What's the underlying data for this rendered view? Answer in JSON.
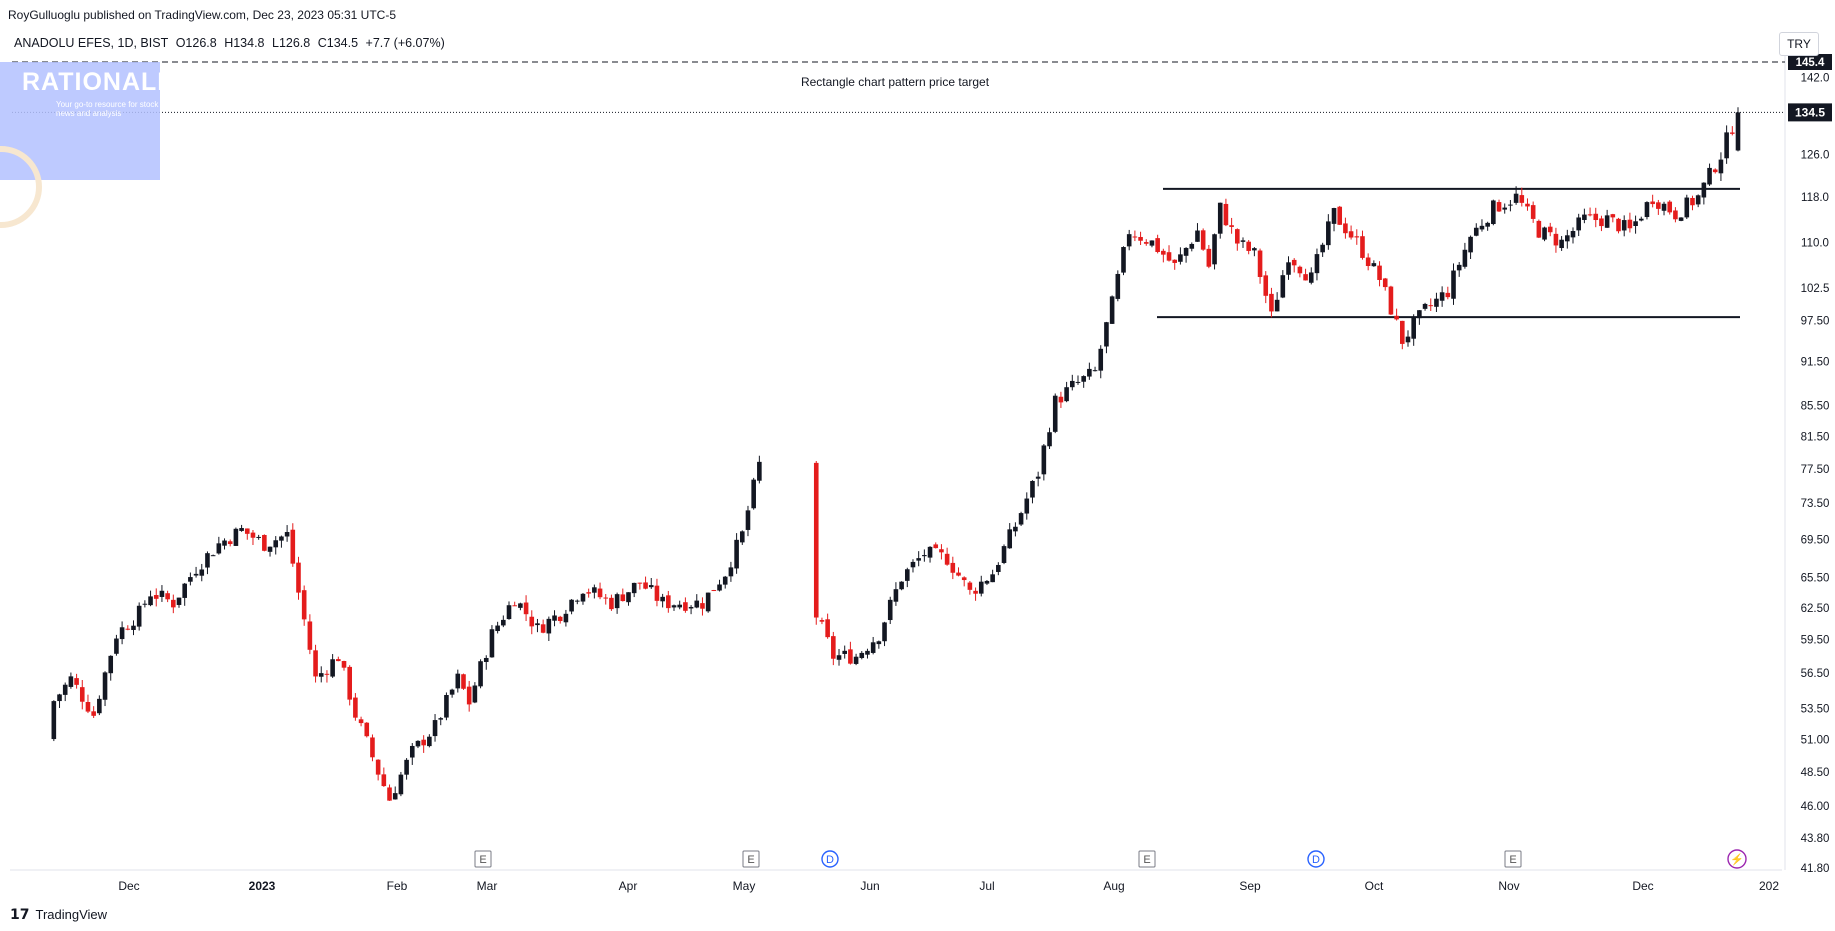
{
  "header": {
    "published": "RoyGulluoglu published on TradingView.com, Dec 23, 2023 05:31 UTC-5",
    "symbol": "ANADOLU EFES, 1D, BIST",
    "open": "O126.8",
    "high": "H134.8",
    "low": "L126.8",
    "close": "C134.5",
    "change": "+7.7 (+6.07%)",
    "currency": "TRY"
  },
  "watermark": {
    "title": "RATIONALE",
    "subtitle": "Your go-to resource for stock news and analysis"
  },
  "footer": {
    "brand": "TradingView"
  },
  "colors": {
    "up": "#131722",
    "down": "#e41c1c",
    "line": "#131722",
    "price_tag": "#131722"
  },
  "chart_data": {
    "type": "candlestick",
    "annotation": "Rectangle chart pattern price target",
    "last_price": "134.5",
    "target_price": "145.4",
    "y_ticks": [
      "142.0",
      "126.0",
      "118.0",
      "110.0",
      "102.5",
      "97.50",
      "91.50",
      "85.50",
      "81.50",
      "77.50",
      "73.50",
      "69.50",
      "65.50",
      "62.50",
      "59.50",
      "56.50",
      "53.50",
      "51.00",
      "48.50",
      "46.00",
      "43.80",
      "41.80"
    ],
    "x_ticks": [
      "Dec",
      "2023",
      "Feb",
      "Mar",
      "Apr",
      "May",
      "Jun",
      "Jul",
      "Aug",
      "Sep",
      "Oct",
      "Nov",
      "Dec",
      "202"
    ],
    "rectangle": {
      "top": 119.5,
      "bottom": 98.0
    },
    "events": [
      {
        "label": "E",
        "month": "Mar"
      },
      {
        "label": "E",
        "month": "May"
      },
      {
        "label": "D",
        "month": "May"
      },
      {
        "label": "E",
        "month": "Aug"
      },
      {
        "label": "D",
        "month": "Sep"
      },
      {
        "label": "E",
        "month": "Oct"
      },
      {
        "label": "⚡",
        "month": "Dec"
      }
    ],
    "path_points": [
      [
        0,
        51.0
      ],
      [
        6,
        53.5
      ],
      [
        10,
        56.0
      ],
      [
        14,
        53.0
      ],
      [
        18,
        60.0
      ],
      [
        22,
        62.0
      ],
      [
        24,
        64.0
      ],
      [
        28,
        63.0
      ],
      [
        32,
        66.5
      ],
      [
        36,
        69.0
      ],
      [
        40,
        70.5
      ],
      [
        44,
        69.0
      ],
      [
        48,
        70.0
      ],
      [
        50,
        64.0
      ],
      [
        53,
        56.0
      ],
      [
        57,
        58.0
      ],
      [
        60,
        53.0
      ],
      [
        64,
        48.5
      ],
      [
        66,
        46.5
      ],
      [
        70,
        50.0
      ],
      [
        74,
        52.0
      ],
      [
        78,
        56.0
      ],
      [
        80,
        54.0
      ],
      [
        84,
        60.0
      ],
      [
        88,
        63.5
      ],
      [
        92,
        60.5
      ],
      [
        96,
        62.0
      ],
      [
        100,
        64.5
      ],
      [
        105,
        63.0
      ],
      [
        110,
        65.0
      ],
      [
        114,
        63.0
      ],
      [
        118,
        63.0
      ],
      [
        121,
        63.0
      ],
      [
        125,
        66.0
      ],
      [
        128,
        70.0
      ],
      [
        131,
        78.0
      ],
      [
        140,
        63.0
      ],
      [
        144,
        58.0
      ],
      [
        148,
        58.0
      ],
      [
        152,
        60.0
      ],
      [
        156,
        65.5
      ],
      [
        160,
        68.0
      ],
      [
        164,
        67.5
      ],
      [
        168,
        64.0
      ],
      [
        172,
        66.0
      ],
      [
        176,
        71.0
      ],
      [
        180,
        77.0
      ],
      [
        183,
        86.0
      ],
      [
        186,
        88.0
      ],
      [
        190,
        90.0
      ],
      [
        193,
        100.0
      ],
      [
        196,
        112.0
      ],
      [
        200,
        110.0
      ],
      [
        204,
        106.0
      ],
      [
        208,
        112.0
      ],
      [
        210,
        106.0
      ],
      [
        212,
        116.0
      ],
      [
        215,
        110.0
      ],
      [
        218,
        108.0
      ],
      [
        221,
        98.0
      ],
      [
        224,
        108.0
      ],
      [
        228,
        104.0
      ],
      [
        232,
        115.0
      ],
      [
        236,
        110.0
      ],
      [
        240,
        104.0
      ],
      [
        244,
        94.5
      ],
      [
        248,
        99.0
      ],
      [
        252,
        102.0
      ],
      [
        256,
        111.0
      ],
      [
        260,
        116.0
      ],
      [
        264,
        118.0
      ],
      [
        268,
        112.0
      ],
      [
        272,
        110.0
      ],
      [
        276,
        114.0
      ],
      [
        280,
        114.0
      ],
      [
        284,
        112.0
      ],
      [
        288,
        118.0
      ],
      [
        292,
        115.0
      ],
      [
        296,
        118.0
      ],
      [
        300,
        126.0
      ],
      [
        303,
        134.5
      ]
    ]
  }
}
